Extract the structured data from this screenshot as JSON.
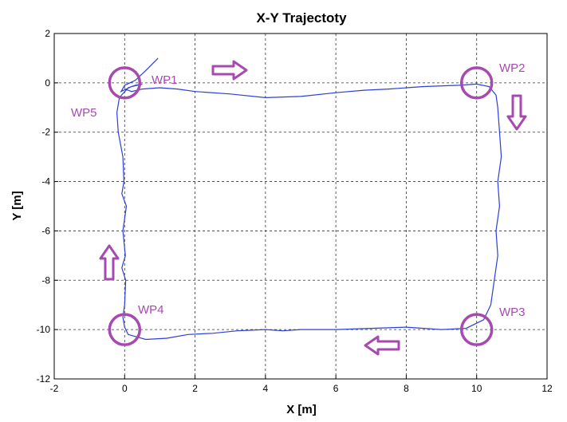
{
  "chart_data": {
    "type": "line",
    "title": "X-Y Trajectoty",
    "xlabel": "X [m]",
    "ylabel": "Y [m]",
    "xlim": [
      -2,
      12
    ],
    "ylim": [
      -12,
      2
    ],
    "x_ticks": [
      "-2",
      "0",
      "2",
      "4",
      "6",
      "8",
      "10",
      "12"
    ],
    "y_ticks": [
      "-12",
      "-10",
      "-8",
      "-6",
      "-4",
      "-2",
      "0",
      "2"
    ],
    "grid": true,
    "colors": {
      "trajectory": "#2b3fd9",
      "annotation": "#a64ab0",
      "arrow_fill": "#ffffff",
      "grid": "#333333"
    },
    "series": [
      {
        "x": [
          0.95,
          0.6,
          0.3,
          0.0,
          -0.1,
          0.2,
          0.5,
          0.3,
          0.1,
          -0.15,
          -0.22,
          -0.18,
          -0.05,
          -0.02,
          -0.08,
          0.05,
          -0.05,
          0.02,
          -0.08,
          0.03,
          0.0,
          -0.05,
          0.0,
          0.1,
          0.6,
          1.2,
          1.8,
          2.5,
          3.2,
          4.0,
          4.5,
          5.0,
          6.0,
          7.0,
          8.0,
          9.0,
          9.7,
          10.2,
          10.4,
          10.5,
          10.6,
          10.55,
          10.65,
          10.6,
          10.7,
          10.65,
          10.6,
          10.55,
          10.35,
          10.0,
          9.5,
          8.5,
          7.5,
          6.8,
          6.0,
          5.0,
          4.0,
          3.0,
          2.0,
          1.5,
          1.0,
          0.5,
          0.2,
          0.0
        ],
        "y": [
          1.0,
          0.5,
          0.1,
          -0.1,
          -0.35,
          -0.15,
          -0.05,
          -0.1,
          -0.2,
          -0.6,
          -1.2,
          -2.0,
          -3.0,
          -4.0,
          -4.5,
          -5.0,
          -6.0,
          -7.0,
          -7.5,
          -8.0,
          -9.0,
          -9.5,
          -9.9,
          -10.2,
          -10.4,
          -10.35,
          -10.2,
          -10.15,
          -10.05,
          -10.0,
          -10.05,
          -10.0,
          -10.0,
          -9.95,
          -9.9,
          -10.0,
          -9.95,
          -9.6,
          -9.0,
          -8.0,
          -7.0,
          -6.0,
          -5.0,
          -4.0,
          -3.0,
          -2.0,
          -1.0,
          -0.5,
          -0.15,
          -0.05,
          -0.1,
          -0.15,
          -0.25,
          -0.3,
          -0.4,
          -0.55,
          -0.6,
          -0.45,
          -0.35,
          -0.25,
          -0.2,
          -0.25,
          -0.35,
          -0.25
        ]
      }
    ],
    "waypoints": [
      {
        "label": "WP1",
        "x": 0,
        "y": 0
      },
      {
        "label": "WP2",
        "x": 10,
        "y": 0
      },
      {
        "label": "WP3",
        "x": 10,
        "y": -10
      },
      {
        "label": "WP4",
        "x": 0,
        "y": -10
      },
      {
        "label": "WP5",
        "x": 0,
        "y": 0
      }
    ],
    "direction_arrows": [
      "right",
      "down",
      "left",
      "up"
    ]
  }
}
